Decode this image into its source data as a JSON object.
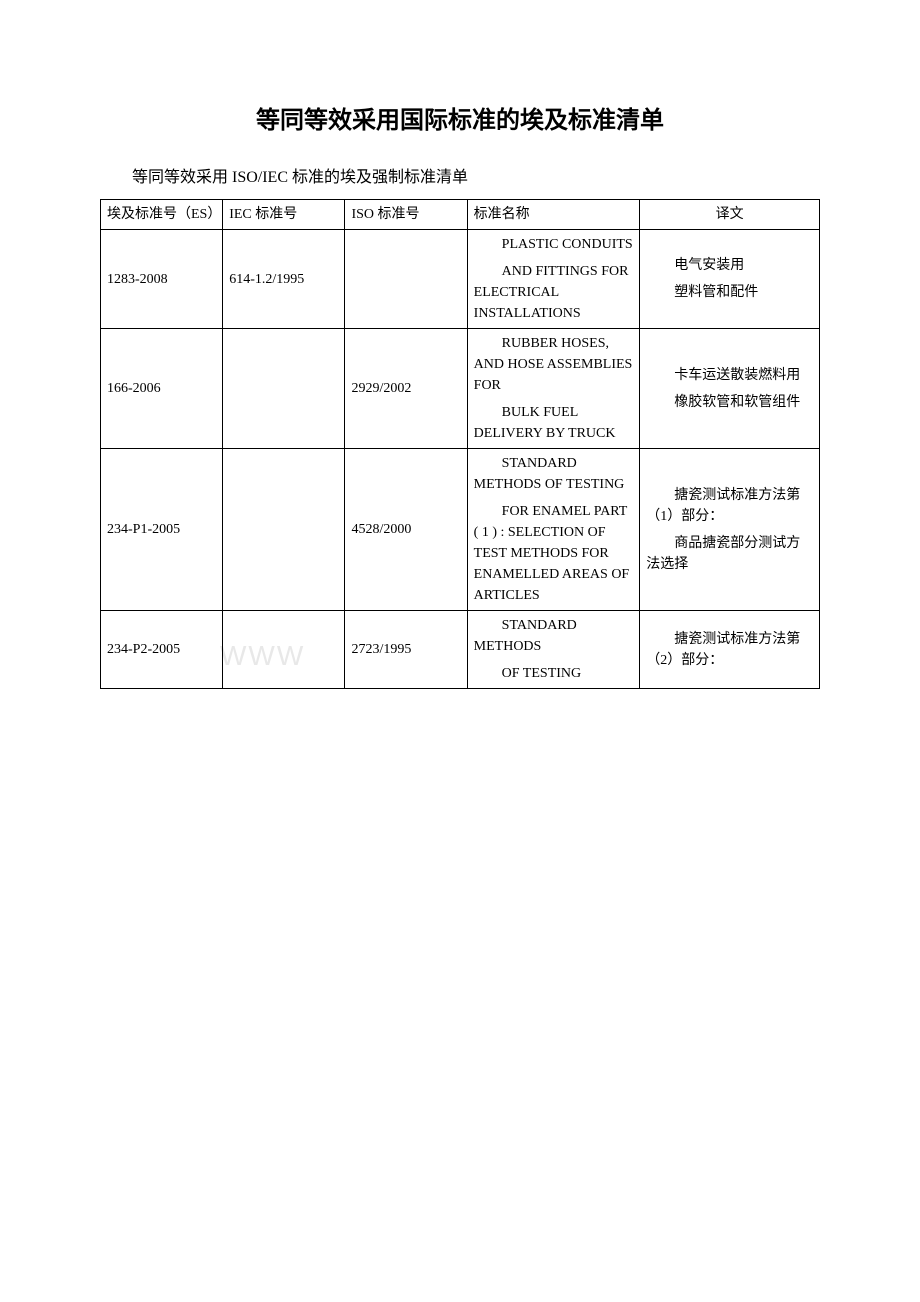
{
  "title": "等同等效采用国际标准的埃及标准清单",
  "subtitle": "等同等效采用 ISO/IEC 标准的埃及强制标准清单",
  "watermark": "WWW",
  "headers": {
    "es": "埃及标准号（ES）",
    "iec": "IEC 标准号",
    "iso": "ISO 标准号",
    "name": "标准名称",
    "translation": "译文"
  },
  "rows": [
    {
      "es": "1283-2008",
      "iec": "614-1.2/1995",
      "iso": "",
      "name_blocks": [
        "PLASTIC CONDUITS",
        "AND FITTINGS FOR ELECTRICAL INSTALLATIONS"
      ],
      "tr_blocks": [
        "电气安装用",
        "塑料管和配件"
      ]
    },
    {
      "es": "166-2006",
      "iec": "",
      "iso": "2929/2002",
      "name_blocks": [
        "RUBBER HOSES, AND HOSE ASSEMBLIES FOR",
        "BULK FUEL DELIVERY BY TRUCK"
      ],
      "tr_blocks": [
        "卡车运送散装燃料用",
        "橡胶软管和软管组件"
      ]
    },
    {
      "es": "234-P1-2005",
      "iec": "",
      "iso": "4528/2000",
      "name_blocks": [
        "STANDARD METHODS OF TESTING",
        "FOR ENAMEL PART ( 1 ) : SELECTION OF TEST METHODS FOR ENAMELLED AREAS OF ARTICLES"
      ],
      "tr_blocks": [
        "搪瓷测试标准方法第（1）部分：",
        "商品搪瓷部分测试方法选择"
      ]
    },
    {
      "es": "234-P2-2005",
      "iec": "",
      "iso": "2723/1995",
      "name_blocks": [
        "STANDARD METHODS",
        "OF TESTING"
      ],
      "tr_blocks": [
        "搪瓷测试标准方法第（2）部分："
      ]
    }
  ]
}
